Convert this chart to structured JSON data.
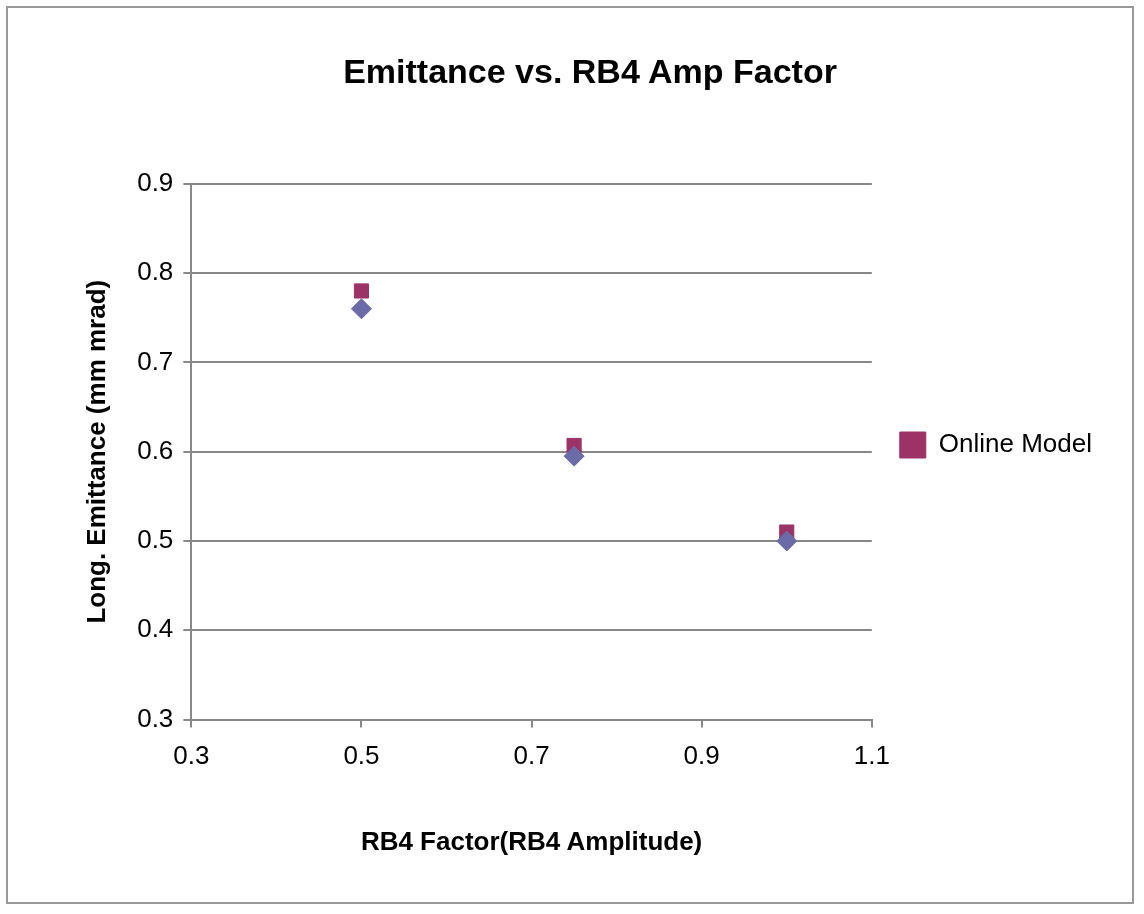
{
  "chart_data": {
    "type": "scatter",
    "title": "Emittance vs. RB4 Amp Factor",
    "xlabel": "RB4 Factor(RB4 Amplitude)",
    "ylabel": "Long. Emittance (mm mrad)",
    "xlim": [
      0.3,
      1.1
    ],
    "xticks": [
      0.3,
      0.5,
      0.7,
      0.9,
      1.1
    ],
    "ylim": [
      0.3,
      0.9
    ],
    "yticks": [
      0.3,
      0.4,
      0.5,
      0.6,
      0.7,
      0.8,
      0.9
    ],
    "grid": "y",
    "legend": "right",
    "x": [
      0.5,
      0.75,
      1.0
    ],
    "series": [
      {
        "color": "#6b6ba8",
        "marker": "diamond",
        "values": [
          0.76,
          0.595,
          0.5
        ]
      },
      {
        "name": "Online Model",
        "color": "#9c3366",
        "marker": "square",
        "values": [
          0.78,
          0.607,
          0.51
        ]
      }
    ]
  }
}
